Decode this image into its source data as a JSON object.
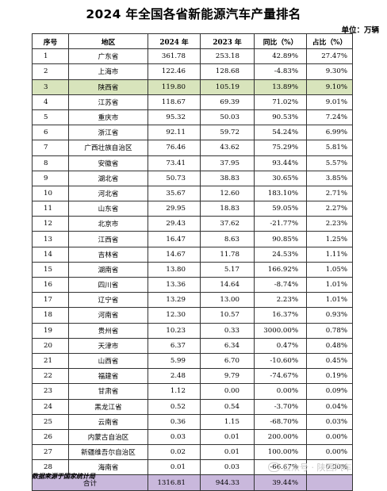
{
  "title": "2024 年全国各省新能源汽车产量排名",
  "unit": "单位：万辆",
  "headers": [
    "序号",
    "地区",
    "2024 年",
    "2023 年",
    "同比（%）",
    "占比（%）"
  ],
  "rows": [
    [
      "1",
      "广东省",
      "361.78",
      "253.18",
      "42.89%",
      "27.47%"
    ],
    [
      "2",
      "上海市",
      "122.46",
      "128.68",
      "-4.83%",
      "9.30%"
    ],
    [
      "3",
      "陕西省",
      "119.80",
      "105.19",
      "13.89%",
      "9.10%"
    ],
    [
      "4",
      "江苏省",
      "118.67",
      "69.39",
      "71.02%",
      "9.01%"
    ],
    [
      "5",
      "重庆市",
      "95.32",
      "50.03",
      "90.53%",
      "7.24%"
    ],
    [
      "6",
      "浙江省",
      "92.11",
      "59.72",
      "54.24%",
      "6.99%"
    ],
    [
      "7",
      "广西壮族自治区",
      "76.46",
      "43.62",
      "75.29%",
      "5.81%"
    ],
    [
      "8",
      "安徽省",
      "73.41",
      "37.95",
      "93.44%",
      "5.57%"
    ],
    [
      "9",
      "湖北省",
      "50.73",
      "38.83",
      "30.65%",
      "3.85%"
    ],
    [
      "10",
      "河北省",
      "35.67",
      "12.60",
      "183.10%",
      "2.71%"
    ],
    [
      "11",
      "山东省",
      "29.95",
      "18.83",
      "59.05%",
      "2.27%"
    ],
    [
      "12",
      "北京市",
      "29.43",
      "37.62",
      "-21.77%",
      "2.23%"
    ],
    [
      "13",
      "江西省",
      "16.47",
      "8.63",
      "90.85%",
      "1.25%"
    ],
    [
      "14",
      "吉林省",
      "14.67",
      "11.78",
      "24.53%",
      "1.11%"
    ],
    [
      "15",
      "湖南省",
      "13.80",
      "5.17",
      "166.92%",
      "1.05%"
    ],
    [
      "16",
      "四川省",
      "13.36",
      "14.64",
      "-8.74%",
      "1.01%"
    ],
    [
      "17",
      "辽宁省",
      "13.29",
      "13.00",
      "2.23%",
      "1.01%"
    ],
    [
      "18",
      "河南省",
      "12.30",
      "10.57",
      "16.37%",
      "0.93%"
    ],
    [
      "19",
      "贵州省",
      "10.23",
      "0.33",
      "3000.00%",
      "0.78%"
    ],
    [
      "20",
      "天津市",
      "6.37",
      "6.34",
      "0.47%",
      "0.48%"
    ],
    [
      "21",
      "山西省",
      "5.99",
      "6.70",
      "-10.60%",
      "0.45%"
    ],
    [
      "22",
      "福建省",
      "2.48",
      "9.79",
      "-74.67%",
      "0.19%"
    ],
    [
      "23",
      "甘肃省",
      "1.12",
      "0.00",
      "0.00%",
      "0.09%"
    ],
    [
      "24",
      "黑龙江省",
      "0.52",
      "0.54",
      "-3.70%",
      "0.04%"
    ],
    [
      "25",
      "云南省",
      "0.36",
      "1.15",
      "-68.70%",
      "0.03%"
    ],
    [
      "26",
      "内蒙古自治区",
      "0.03",
      "0.01",
      "200.00%",
      "0.00%"
    ],
    [
      "27",
      "新疆维吾尔自治区",
      "0.02",
      "0.01",
      "100.00%",
      "0.00%"
    ],
    [
      "28",
      "海南省",
      "0.01",
      "0.03",
      "-66.67%",
      "0.00%"
    ]
  ],
  "highlight_row": 2,
  "highlight_color": "#d8e4bc",
  "total": [
    "合计",
    "1316.81",
    "944.33",
    "39.44%"
  ],
  "total_color": "#c9b8dc",
  "source": "数据来源于国家统计局",
  "watermark": "公众号 · 陕西汽车"
}
